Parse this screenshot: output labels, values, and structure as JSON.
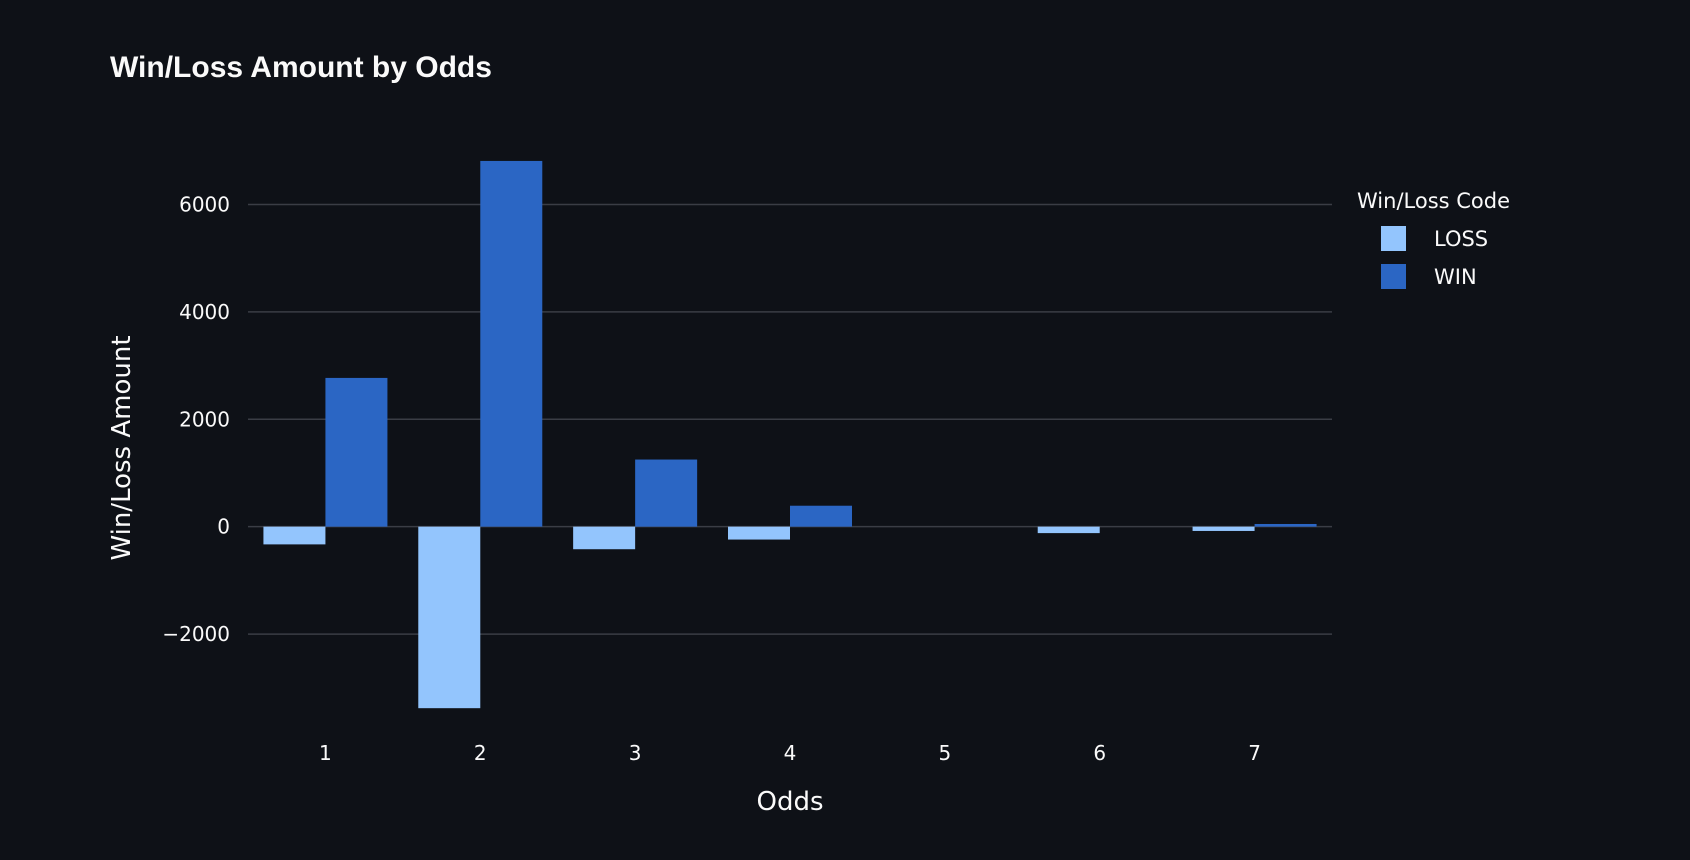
{
  "chart_data": {
    "type": "bar",
    "title": "Win/Loss Amount by Odds",
    "xlabel": "Odds",
    "ylabel": "Win/Loss Amount",
    "categories": [
      "1",
      "2",
      "3",
      "4",
      "5",
      "6",
      "7"
    ],
    "series": [
      {
        "name": "LOSS",
        "color": "#93c5fd",
        "values": [
          -330,
          -3380,
          -420,
          -240,
          0,
          -120,
          -80
        ]
      },
      {
        "name": "WIN",
        "color": "#2b66c4",
        "values": [
          2770,
          6810,
          1250,
          390,
          0,
          0,
          50
        ]
      }
    ],
    "ylim": [
      -3600,
      7200
    ],
    "yticks": [
      -2000,
      0,
      2000,
      4000,
      6000
    ],
    "ytick_labels": [
      "−2000",
      "0",
      "2000",
      "4000",
      "6000"
    ],
    "grid": true,
    "legend": {
      "title": "Win/Loss Code",
      "position": "right"
    }
  },
  "colors": {
    "background": "#0e1117",
    "text": "#fafafa",
    "grid": "#3a3d45"
  }
}
